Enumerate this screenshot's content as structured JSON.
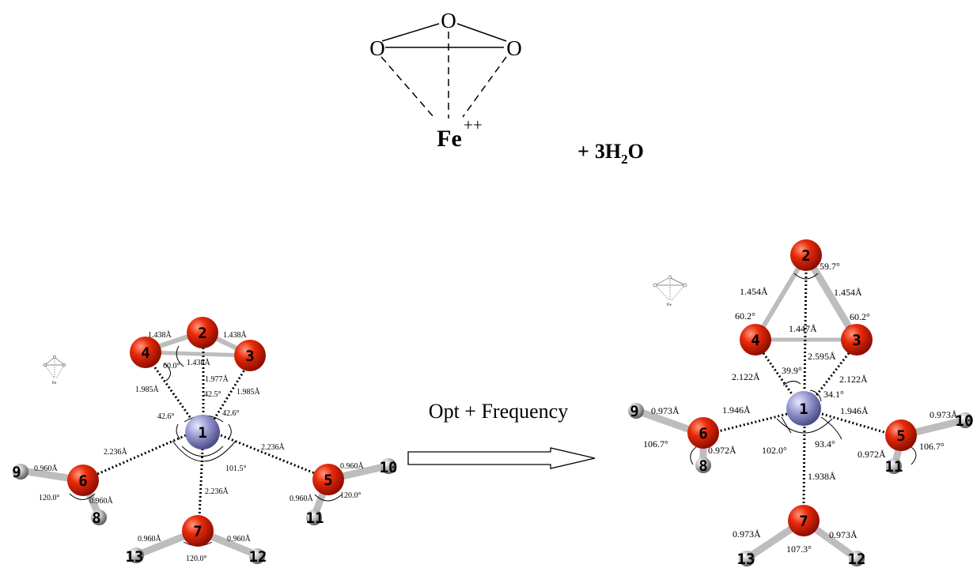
{
  "reaction": {
    "sym_o_top": "O",
    "sym_o_left": "O",
    "sym_o_right": "O",
    "sym_fe": "Fe",
    "fe_charge": "++",
    "plus": "+",
    "coef": "3",
    "h_symbol": "H",
    "h_subscript": "2",
    "o_symbol": "O"
  },
  "arrow_label": "Opt + Frequency",
  "colors": {
    "iron": "#8f8fc8",
    "oxygen": "#e02008",
    "hydrogen": "#a0a0a0",
    "bond": "#bdbdbd"
  },
  "left_structure": {
    "atoms": [
      "1",
      "2",
      "3",
      "4",
      "5",
      "6",
      "7",
      "8",
      "9",
      "10",
      "11",
      "12",
      "13"
    ],
    "labels": [
      "1.438Å",
      "1.438Å",
      "1.438Å",
      "60.0°",
      "1.977Å",
      "1.985Å",
      "1.985Å",
      "42.5°",
      "42.6°",
      "42.6°",
      "2.236Å",
      "2.236Å",
      "2.236Å",
      "101.5°",
      "0.960Å",
      "0.960Å",
      "120.0°",
      "0.960Å",
      "0.960Å",
      "120.0°",
      "0.960Å",
      "0.960Å",
      "120.0°"
    ]
  },
  "right_structure": {
    "atoms": [
      "1",
      "2",
      "3",
      "4",
      "5",
      "6",
      "7",
      "8",
      "9",
      "10",
      "11",
      "12",
      "13"
    ],
    "labels": [
      "1.454Å",
      "1.454Å",
      "59.7°",
      "60.2°",
      "60.2°",
      "1.447Å",
      "2.595Å",
      "2.122Å",
      "2.122Å",
      "39.9°",
      "34.1°",
      "1.946Å",
      "1.946Å",
      "102.0°",
      "93.4°",
      "1.938Å",
      "0.973Å",
      "0.973Å",
      "106.7°",
      "106.7°",
      "0.972Å",
      "0.972Å",
      "0.973Å",
      "0.973Å",
      "107.3°"
    ]
  }
}
